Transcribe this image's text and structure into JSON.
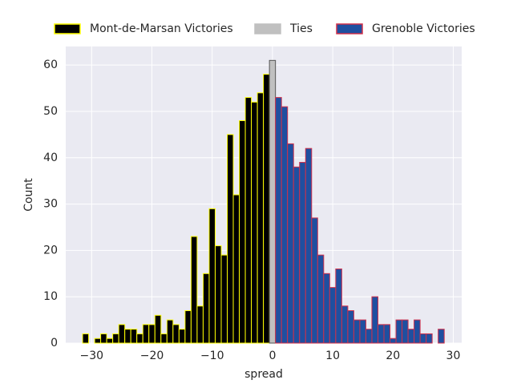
{
  "chart_data": {
    "type": "histogram",
    "xlabel": "spread",
    "ylabel": "Count",
    "xlim": [
      -34.3,
      31.4
    ],
    "ylim": [
      0,
      64
    ],
    "xticks": [
      {
        "value": -30,
        "label": "−30"
      },
      {
        "value": -20,
        "label": "−20"
      },
      {
        "value": -10,
        "label": "−10"
      },
      0,
      10,
      20,
      30
    ],
    "yticks": [
      0,
      10,
      20,
      30,
      40,
      50,
      60
    ],
    "grid": true,
    "legend": "top",
    "series": [
      {
        "name": "Mont-de-Marsan Victories",
        "color": "#000000",
        "edgecolor": "#ffff00",
        "bins": [
          -31.5,
          -30.5,
          -29.5,
          -28.5,
          -27.5,
          -26.5,
          -25.5,
          -24.5,
          -23.5,
          -22.5,
          -21.5,
          -20.5,
          -19.5,
          -18.5,
          -17.5,
          -16.5,
          -15.5,
          -14.5,
          -13.5,
          -12.5,
          -11.5,
          -10.5,
          -9.5,
          -8.5,
          -7.5,
          -6.5,
          -5.5,
          -4.5,
          -3.5,
          -2.5,
          -1.5,
          -0.5
        ],
        "values": [
          2,
          0,
          1,
          2,
          1,
          2,
          4,
          3,
          3,
          2,
          4,
          4,
          6,
          2,
          5,
          4,
          3,
          7,
          23,
          8,
          15,
          29,
          21,
          19,
          45,
          32,
          48,
          53,
          52,
          54,
          58
        ]
      },
      {
        "name": "Ties",
        "color": "#c0c0c0",
        "edgecolor": "#555555",
        "bins": [
          -0.5,
          0.5
        ],
        "values": [
          61
        ]
      },
      {
        "name": "Grenoble Victories",
        "color": "#1f4fa0",
        "edgecolor": "#d0304a",
        "bins": [
          0.5,
          1.5,
          2.5,
          3.5,
          4.5,
          5.5,
          6.5,
          7.5,
          8.5,
          9.5,
          10.5,
          11.5,
          12.5,
          13.5,
          14.5,
          15.5,
          16.5,
          17.5,
          18.5,
          19.5,
          20.5,
          21.5,
          22.5,
          23.5,
          24.5,
          25.5,
          26.5,
          27.5,
          28.5
        ],
        "values": [
          53,
          51,
          43,
          38,
          39,
          42,
          27,
          19,
          15,
          12,
          16,
          8,
          7,
          5,
          5,
          3,
          10,
          4,
          4,
          1,
          5,
          5,
          3,
          5,
          2,
          2,
          0,
          3
        ]
      }
    ]
  }
}
